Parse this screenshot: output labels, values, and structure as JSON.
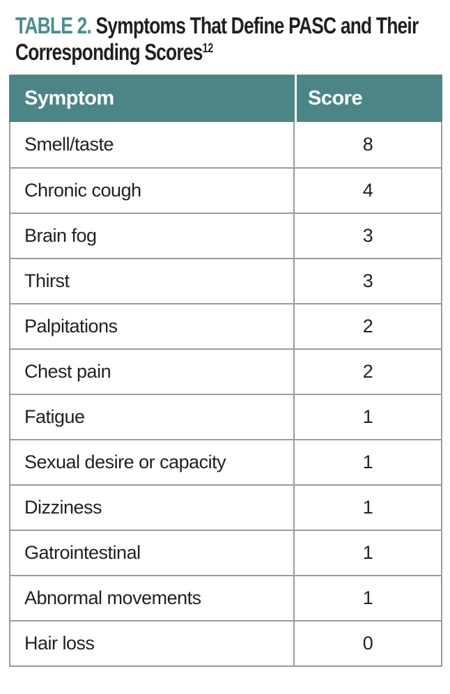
{
  "title": {
    "label": "TABLE 2.",
    "rest_line1": "Symptoms That Define PASC and Their",
    "line2": "Corresponding Scores",
    "superscript": "12",
    "accent_color": "#4A8D8F",
    "text_color": "#231F20"
  },
  "table": {
    "header": {
      "symptom": "Symptom",
      "score": "Score"
    },
    "rows": [
      {
        "symptom": "Smell/taste",
        "score": "8"
      },
      {
        "symptom": "Chronic cough",
        "score": "4"
      },
      {
        "symptom": "Brain fog",
        "score": "3"
      },
      {
        "symptom": "Thirst",
        "score": "3"
      },
      {
        "symptom": "Palpitations",
        "score": "2"
      },
      {
        "symptom": "Chest pain",
        "score": "2"
      },
      {
        "symptom": "Fatigue",
        "score": "1"
      },
      {
        "symptom": "Sexual desire or capacity",
        "score": "1"
      },
      {
        "symptom": "Dizziness",
        "score": "1"
      },
      {
        "symptom": "Gatrointestinal",
        "score": "1"
      },
      {
        "symptom": "Abnormal movements",
        "score": "1"
      },
      {
        "symptom": "Hair loss",
        "score": "0"
      }
    ],
    "colors": {
      "header_bg": "#4C8586",
      "header_text": "#ffffff",
      "row_border": "#9C9B95",
      "body_text": "#231F20"
    }
  }
}
